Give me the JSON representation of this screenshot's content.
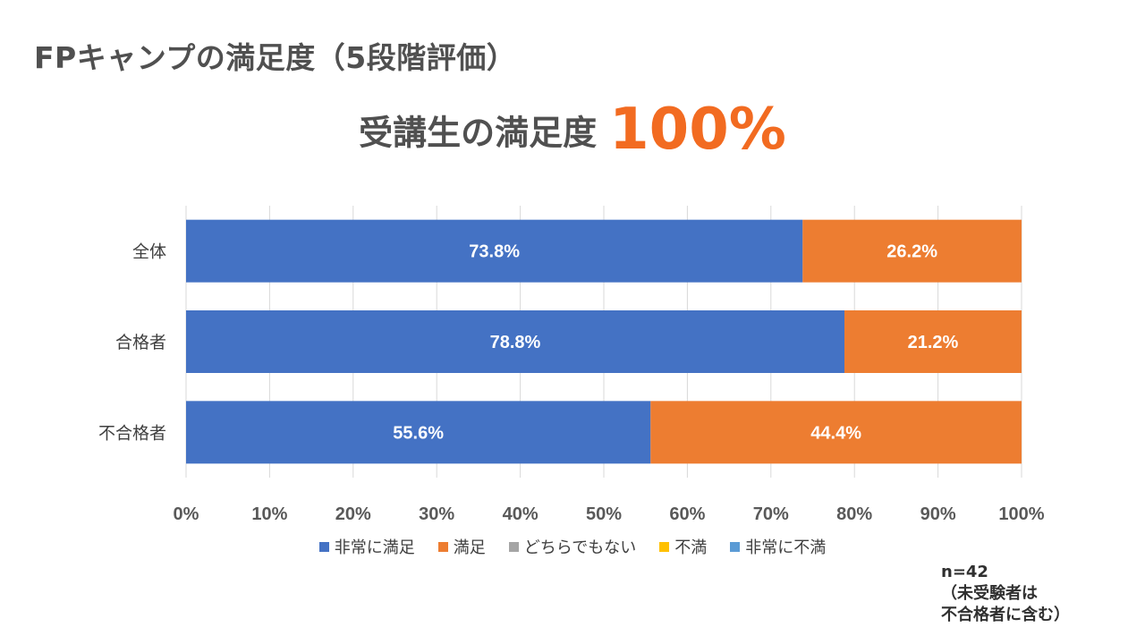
{
  "title": "FPキャンプの満足度（5段階評価）",
  "headline": {
    "lead": "受講生の満足度",
    "value": "100%"
  },
  "chart_data": {
    "type": "bar",
    "orientation": "horizontal",
    "stacked": true,
    "categories": [
      "全体",
      "合格者",
      "不合格者"
    ],
    "series": [
      {
        "name": "非常に満足",
        "color": "#4472c4",
        "values": [
          73.8,
          78.8,
          55.6
        ]
      },
      {
        "name": "満足",
        "color": "#ed7d31",
        "values": [
          26.2,
          21.2,
          44.4
        ]
      },
      {
        "name": "どちらでもない",
        "color": "#a5a5a5",
        "values": [
          0,
          0,
          0
        ]
      },
      {
        "name": "不満",
        "color": "#ffc000",
        "values": [
          0,
          0,
          0
        ]
      },
      {
        "name": "非常に不満",
        "color": "#5b9bd5",
        "values": [
          0,
          0,
          0
        ]
      }
    ],
    "xlim": [
      0,
      100
    ],
    "xticks": [
      "0%",
      "10%",
      "20%",
      "30%",
      "40%",
      "50%",
      "60%",
      "70%",
      "80%",
      "90%",
      "100%"
    ],
    "grid": "vertical",
    "legend": "bottom"
  },
  "note": {
    "line1": "n=42",
    "line2": "（未受験者は",
    "line3": "不合格者に含む）"
  }
}
